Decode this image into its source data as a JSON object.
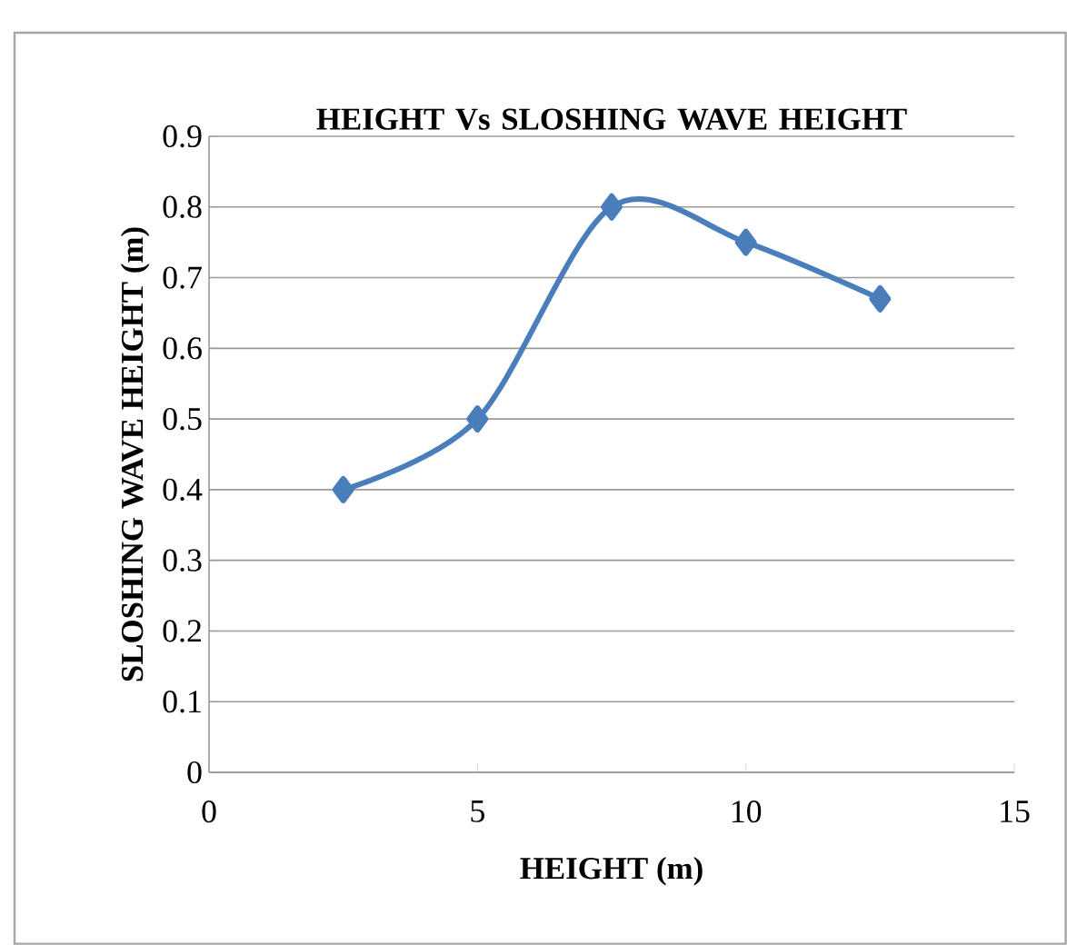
{
  "chart_data": {
    "type": "line",
    "title": "HEIGHT  Vs  SLOSHING WAVE HEIGHT",
    "xlabel": "HEIGHT (m)",
    "ylabel": "SLOSHING WAVE HEIGHT (m)",
    "x": [
      2.5,
      5,
      7.5,
      10,
      12.5
    ],
    "series": [
      {
        "color": "#4a7ebb",
        "values": [
          0.4,
          0.5,
          0.8,
          0.75,
          0.67
        ]
      }
    ],
    "xlim": [
      0,
      15
    ],
    "xticks": [
      0,
      5,
      10,
      15
    ],
    "ylim": [
      0,
      0.9
    ],
    "yticks": [
      0,
      0.1,
      0.2,
      0.3,
      0.4,
      0.5,
      0.6,
      0.7,
      0.8,
      0.9
    ],
    "grid": "y",
    "marker": "diamond",
    "line_style": "solid"
  }
}
